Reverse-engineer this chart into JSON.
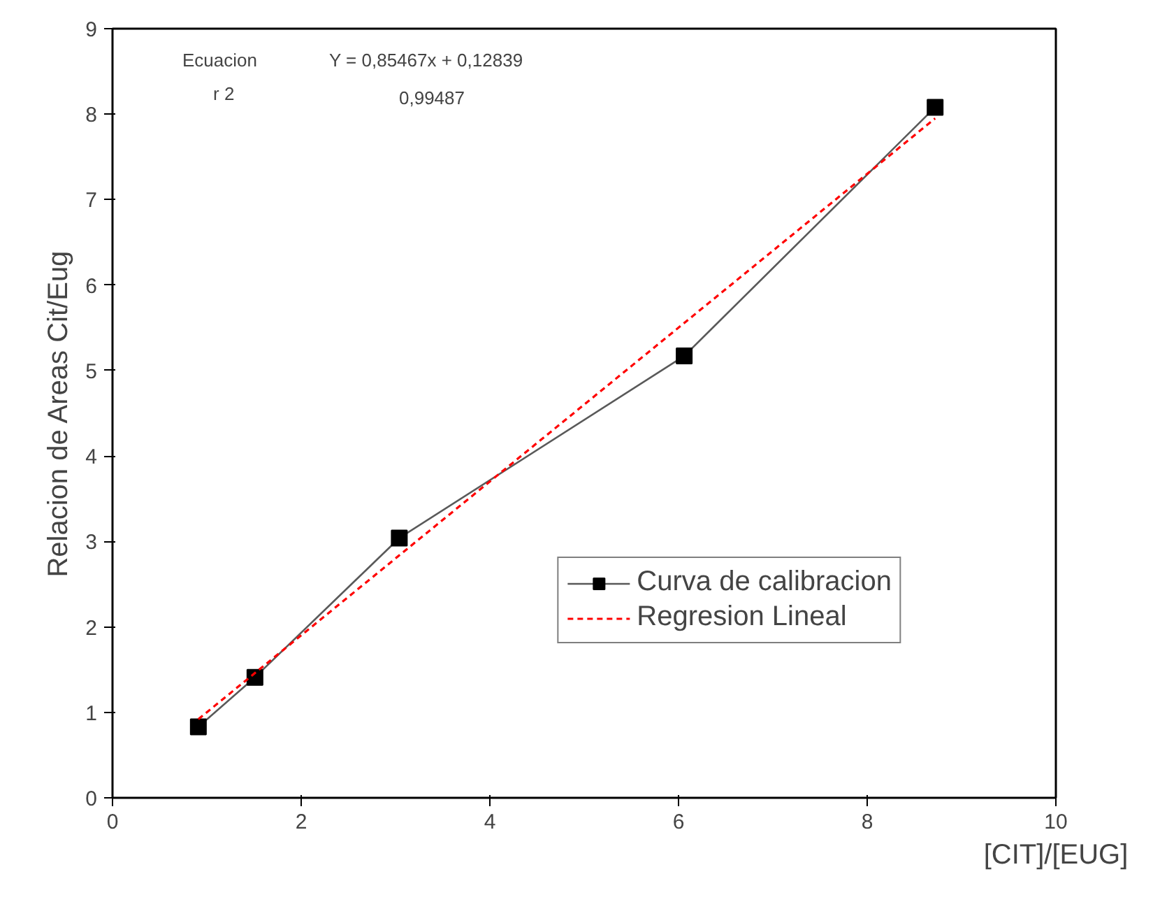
{
  "chart_data": {
    "type": "line",
    "xlabel": "[CIT]/[EUG]",
    "ylabel": "Relacion de Areas Cit/Eug",
    "xlim": [
      0,
      10
    ],
    "xticks": [
      0,
      2,
      4,
      6,
      8,
      10
    ],
    "ylim": [
      0,
      9
    ],
    "yticks": [
      0,
      1,
      2,
      3,
      4,
      5,
      6,
      7,
      8,
      9
    ],
    "grid": false,
    "legend": "bottom right",
    "series": [
      {
        "name": "Curva de calibracion",
        "color": "#000000",
        "marker": "square",
        "line_style": "solid",
        "x": [
          0.91,
          1.51,
          3.04,
          6.06,
          8.72
        ],
        "values": [
          0.83,
          1.41,
          3.04,
          5.17,
          8.08
        ]
      },
      {
        "name": "Regresion Lineal",
        "color": "#ff0000",
        "marker": "none",
        "line_style": "dashed",
        "x": [
          0.91,
          8.72
        ],
        "values": [
          0.92,
          7.95
        ]
      }
    ],
    "annotations": [
      "Ecuacion",
      "r 2",
      "Y = 0,85467x + 0,12839",
      "0,99487"
    ]
  }
}
